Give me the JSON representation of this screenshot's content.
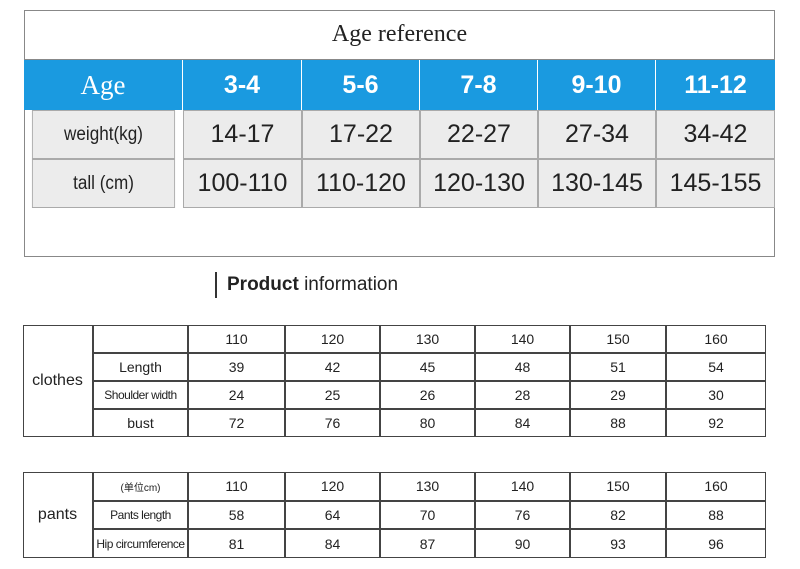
{
  "age_table": {
    "title": "Age reference",
    "header": [
      "Age",
      "3-4",
      "5-6",
      "7-8",
      "9-10",
      "11-12"
    ],
    "rows": [
      [
        "weight(kg)",
        "14-17",
        "17-22",
        "22-27",
        "27-34",
        "34-42"
      ],
      [
        "tall (cm)",
        "100-110",
        "110-120",
        "120-130",
        "130-145",
        "145-155"
      ]
    ]
  },
  "heading": {
    "bold": "Product",
    "rest": "information"
  },
  "clothes_table": {
    "label": "clothes",
    "sizes": [
      "110",
      "120",
      "130",
      "140",
      "150",
      "160"
    ],
    "rows": [
      [
        "Length",
        "39",
        "42",
        "45",
        "48",
        "51",
        "54"
      ],
      [
        "Shoulder width",
        "24",
        "25",
        "26",
        "28",
        "29",
        "30"
      ],
      [
        "bust",
        "72",
        "76",
        "80",
        "84",
        "88",
        "92"
      ]
    ]
  },
  "pants_table": {
    "label": "pants",
    "unit": "(单位cm)",
    "sizes": [
      "110",
      "120",
      "130",
      "140",
      "150",
      "160"
    ],
    "rows": [
      [
        "Pants length",
        "58",
        "64",
        "70",
        "76",
        "82",
        "88"
      ],
      [
        "Hip circumference",
        "81",
        "84",
        "87",
        "90",
        "93",
        "96"
      ]
    ]
  }
}
